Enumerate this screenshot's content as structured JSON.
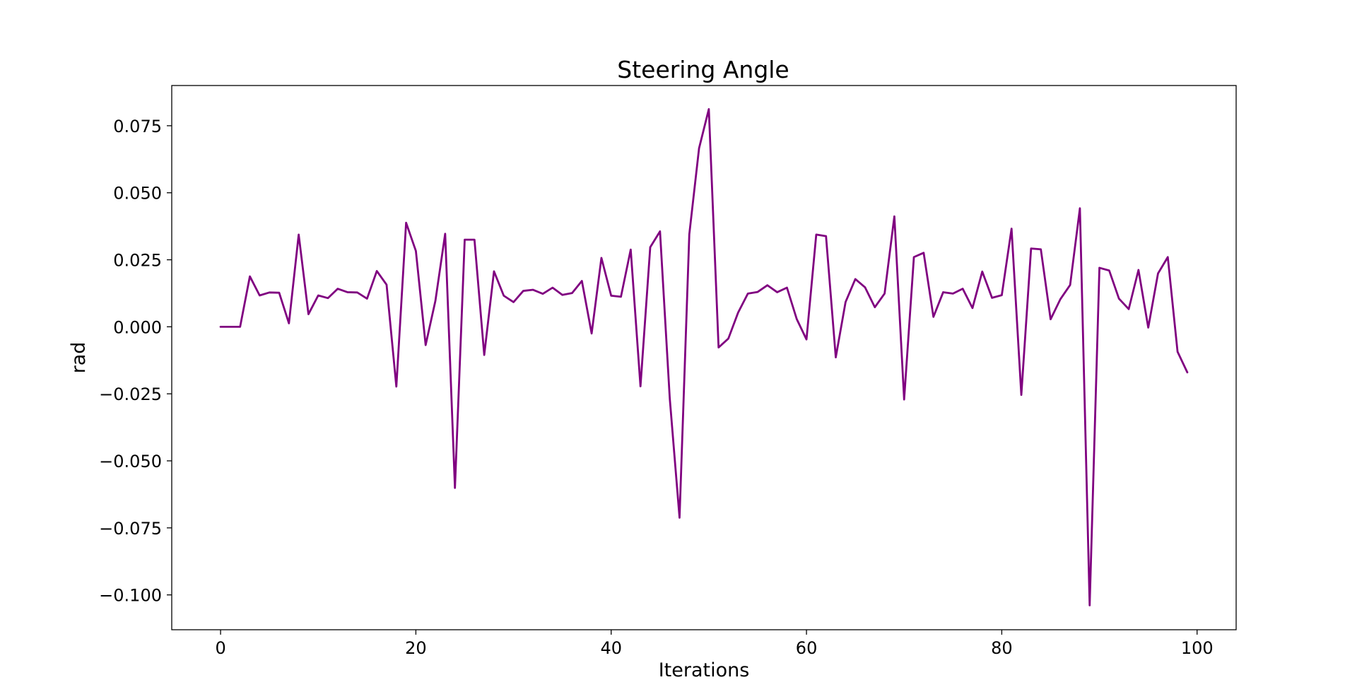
{
  "chart_data": {
    "type": "line",
    "title": "Steering Angle",
    "xlabel": "Iterations",
    "ylabel": "rad",
    "xlim": [
      -5,
      104
    ],
    "ylim": [
      -0.113,
      0.09
    ],
    "xticks": [
      0,
      20,
      40,
      60,
      80,
      100
    ],
    "xtick_labels": [
      "0",
      "20",
      "40",
      "60",
      "80",
      "100"
    ],
    "yticks": [
      0.075,
      0.05,
      0.025,
      0.0,
      -0.025,
      -0.05,
      -0.075,
      -0.1
    ],
    "ytick_labels": [
      "0.075",
      "0.050",
      "0.025",
      "0.000",
      "−0.025",
      "−0.050",
      "−0.075",
      "−0.100"
    ],
    "grid": false,
    "line_color": "#800080",
    "series": [
      {
        "x": [
          0,
          1,
          2,
          3,
          4,
          5,
          6,
          7,
          8,
          9,
          10,
          11,
          12,
          13,
          14,
          15,
          16,
          17,
          18,
          19,
          20,
          21,
          22,
          23,
          24,
          25,
          26,
          27,
          28,
          29,
          30,
          31,
          32,
          33,
          34,
          35,
          36,
          37,
          38,
          39,
          40,
          41,
          42,
          43,
          44,
          45,
          46,
          47,
          48,
          49,
          50,
          51,
          52,
          53,
          54,
          55,
          56,
          57,
          58,
          59,
          60,
          61,
          62,
          63,
          64,
          65,
          66,
          67,
          68,
          69,
          70,
          71,
          72,
          73,
          74,
          75,
          76,
          77,
          78,
          79,
          80,
          81,
          82,
          83,
          84,
          85,
          86,
          87,
          88,
          89,
          90,
          91,
          92,
          93,
          94,
          95,
          96,
          97,
          98,
          99
        ],
        "values": [
          0.0,
          0.0,
          0.0,
          0.0188,
          0.0117,
          0.0128,
          0.0127,
          0.0013,
          0.0344,
          0.0047,
          0.0117,
          0.0107,
          0.0142,
          0.0129,
          0.0128,
          0.0105,
          0.0208,
          0.0157,
          -0.0223,
          0.0388,
          0.0283,
          -0.0068,
          0.0097,
          0.0347,
          -0.0601,
          0.0325,
          0.0325,
          -0.0105,
          0.0207,
          0.0116,
          0.0092,
          0.0134,
          0.0138,
          0.0123,
          0.0146,
          0.0119,
          0.0126,
          0.0171,
          -0.0025,
          0.0257,
          0.0116,
          0.0112,
          0.0288,
          -0.0222,
          0.0297,
          0.0356,
          -0.0267,
          -0.0712,
          0.0345,
          0.0666,
          0.0812,
          -0.0077,
          -0.0044,
          0.0053,
          0.0124,
          0.013,
          0.0155,
          0.0129,
          0.0146,
          0.0029,
          -0.0047,
          0.0344,
          0.0338,
          -0.0114,
          0.0092,
          0.0178,
          0.0147,
          0.0073,
          0.0124,
          0.0412,
          -0.0271,
          0.026,
          0.0276,
          0.0037,
          0.0129,
          0.0124,
          0.0142,
          0.007,
          0.0206,
          0.0108,
          0.0118,
          0.0366,
          -0.0254,
          0.0292,
          0.0289,
          0.0028,
          0.0103,
          0.0156,
          0.0442,
          -0.1039,
          0.022,
          0.021,
          0.0105,
          0.0066,
          0.0212,
          -0.0003,
          0.0199,
          0.026,
          -0.0093,
          -0.017
        ]
      }
    ]
  }
}
